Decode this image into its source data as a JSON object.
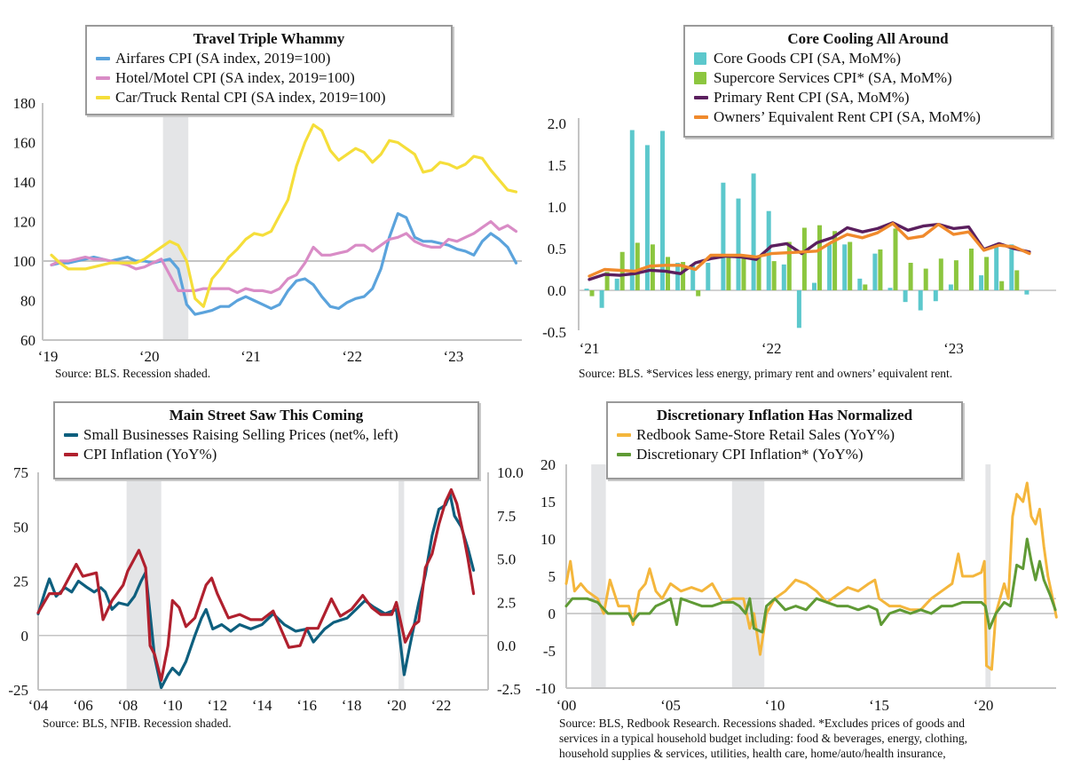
{
  "chart_data": [
    {
      "type": "line",
      "title": "Travel Triple Whammy",
      "start_month": "2019-01",
      "frequency": "monthly",
      "ylim": [
        60,
        180
      ],
      "yticks": [
        "60",
        "80",
        "100",
        "120",
        "140",
        "160",
        "180"
      ],
      "xticks": [
        "‘19",
        "‘20",
        "‘21",
        "‘22",
        "‘23"
      ],
      "reference_line": 100,
      "recession_shaded": [
        "2020-02",
        "2020-04"
      ],
      "legend": "top-center",
      "source": "Source: BLS. Recession shaded.",
      "colors": {
        "airfares": "#5ba3dc",
        "hotel": "#d98cc6",
        "car": "#f5de3a"
      },
      "series": [
        {
          "name": "Airfares CPI (SA index, 2019=100)",
          "key": "airfares",
          "values": [
            98,
            99,
            99,
            100,
            101,
            102,
            101,
            100,
            101,
            102,
            100,
            100,
            99,
            100,
            101,
            96,
            78,
            73,
            74,
            75,
            77,
            77,
            80,
            82,
            80,
            78,
            76,
            78,
            85,
            90,
            91,
            88,
            82,
            77,
            76,
            79,
            81,
            82,
            86,
            96,
            112,
            124,
            122,
            112,
            110,
            110,
            109,
            108,
            106,
            105,
            103,
            110,
            114,
            111,
            107,
            99
          ]
        },
        {
          "name": "Hotel/Motel CPI (SA index, 2019=100)",
          "key": "hotel",
          "values": [
            98,
            100,
            100,
            101,
            102,
            101,
            101,
            100,
            99,
            98,
            96,
            97,
            99,
            101,
            93,
            85,
            85,
            85,
            86,
            86,
            86,
            86,
            84,
            86,
            85,
            85,
            84,
            86,
            91,
            93,
            99,
            107,
            103,
            103,
            104,
            105,
            108,
            108,
            105,
            108,
            111,
            112,
            114,
            110,
            108,
            107,
            107,
            111,
            110,
            112,
            114,
            117,
            120,
            116,
            118,
            115
          ]
        },
        {
          "name": "Car/Truck Rental CPI (SA index, 2019=100)",
          "key": "car",
          "values": [
            103,
            99,
            96,
            96,
            96,
            97,
            98,
            99,
            99,
            99,
            99,
            101,
            104,
            107,
            110,
            108,
            100,
            81,
            77,
            91,
            96,
            102,
            106,
            111,
            114,
            113,
            115,
            123,
            131,
            148,
            160,
            169,
            166,
            156,
            151,
            154,
            157,
            155,
            150,
            154,
            161,
            160,
            157,
            154,
            145,
            146,
            150,
            149,
            147,
            149,
            153,
            152,
            146,
            141,
            136,
            135
          ]
        }
      ]
    },
    {
      "type": "bar+line",
      "title": "Core Cooling All Around",
      "start_month": "2021-01",
      "frequency": "monthly",
      "ylim": [
        -0.5,
        2.0
      ],
      "yticks": [
        "-0.5",
        "0.0",
        "0.5",
        "1.0",
        "1.5",
        "2.0"
      ],
      "xticks": [
        "‘21",
        "‘22",
        "‘23"
      ],
      "legend": "top-right",
      "source": "Source: BLS. *Services less energy, primary rent and owners’ equivalent rent.",
      "colors": {
        "goods": "#5cc8cc",
        "supercore": "#8cc63f",
        "rent": "#5b1f5e",
        "oer": "#f08a2c"
      },
      "series": [
        {
          "name": "Core Goods CPI (SA, MoM%)",
          "key": "goods",
          "kind": "bar",
          "values": [
            0.02,
            -0.21,
            0.14,
            1.92,
            1.74,
            1.91,
            0.33,
            0.3,
            0.33,
            1.29,
            1.1,
            1.4,
            0.95,
            0.31,
            -0.45,
            0.09,
            0.55,
            0.55,
            0.14,
            0.44,
            0.03,
            -0.14,
            -0.24,
            -0.13,
            0.07,
            0.0,
            0.18,
            0.55,
            0.55,
            -0.05
          ]
        },
        {
          "name": "Supercore Services CPI* (SA, MoM%)",
          "key": "supercore",
          "kind": "bar",
          "values": [
            -0.07,
            0.22,
            0.46,
            0.57,
            0.55,
            0.4,
            0.34,
            -0.07,
            0.0,
            0.42,
            0.4,
            0.4,
            0.35,
            0.58,
            0.75,
            0.78,
            0.71,
            0.58,
            0.07,
            0.49,
            0.74,
            0.33,
            0.26,
            0.38,
            0.36,
            0.5,
            0.4,
            0.11,
            0.24,
            0.0
          ]
        },
        {
          "name": "Primary Rent CPI (SA, MoM%)",
          "key": "rent",
          "kind": "line",
          "values": [
            0.13,
            0.19,
            0.18,
            0.2,
            0.24,
            0.23,
            0.2,
            0.33,
            0.38,
            0.41,
            0.4,
            0.37,
            0.53,
            0.56,
            0.44,
            0.57,
            0.63,
            0.75,
            0.7,
            0.74,
            0.81,
            0.72,
            0.77,
            0.79,
            0.74,
            0.76,
            0.49,
            0.56,
            0.5,
            0.46
          ]
        },
        {
          "name": "Owners’ Equivalent Rent CPI (SA, MoM%)",
          "key": "oer",
          "kind": "line",
          "values": [
            0.17,
            0.25,
            0.24,
            0.23,
            0.29,
            0.3,
            0.3,
            0.25,
            0.42,
            0.42,
            0.42,
            0.4,
            0.44,
            0.45,
            0.46,
            0.47,
            0.58,
            0.67,
            0.63,
            0.69,
            0.8,
            0.62,
            0.65,
            0.79,
            0.67,
            0.7,
            0.48,
            0.54,
            0.52,
            0.44
          ]
        }
      ]
    },
    {
      "type": "line",
      "title": "Main Street Saw This Coming",
      "ylim_left": [
        -25,
        75
      ],
      "ylim_right": [
        -2.5,
        10.0
      ],
      "yticks_left": [
        "-25",
        "0",
        "25",
        "50",
        "75"
      ],
      "yticks_right": [
        "-2.5",
        "0.0",
        "2.5",
        "5.0",
        "7.5",
        "10.0"
      ],
      "xticks": [
        "‘04",
        "‘06",
        "‘08",
        "‘10",
        "‘12",
        "‘14",
        "‘16",
        "‘18",
        "‘20",
        "‘22"
      ],
      "reference_line": 0,
      "recession_shaded": [
        [
          2007.95,
          2009.5
        ],
        [
          2020.1,
          2020.35
        ]
      ],
      "legend": "top-center",
      "source": "Source: BLS, NFIB. Recession shaded.",
      "colors": {
        "nfib": "#0e5f7e",
        "cpi": "#b0202e"
      },
      "series": [
        {
          "name": "Small Businesses Raising Selling Prices (net%, left)",
          "key": "nfib",
          "axis": "left",
          "x": [
            2004.0,
            2004.3,
            2004.5,
            2004.8,
            2005.2,
            2005.5,
            2005.8,
            2006.2,
            2006.5,
            2006.8,
            2007.0,
            2007.3,
            2007.6,
            2008.0,
            2008.3,
            2008.6,
            2008.8,
            2009.0,
            2009.2,
            2009.5,
            2009.8,
            2010.0,
            2010.3,
            2010.6,
            2011.0,
            2011.3,
            2011.5,
            2011.8,
            2012.2,
            2012.6,
            2013.0,
            2013.5,
            2014.0,
            2014.5,
            2015.0,
            2015.5,
            2016.0,
            2016.3,
            2016.8,
            2017.2,
            2017.8,
            2018.2,
            2018.6,
            2019.0,
            2019.5,
            2020.0,
            2020.2,
            2020.35,
            2020.6,
            2021.0,
            2021.3,
            2021.6,
            2021.9,
            2022.2,
            2022.4,
            2022.6,
            2022.9,
            2023.2,
            2023.45
          ],
          "values": [
            10,
            20,
            26,
            18,
            22,
            20,
            25,
            22,
            20,
            22,
            20,
            12,
            15,
            14,
            18,
            25,
            29,
            10,
            -10,
            -24,
            -18,
            -15,
            -18,
            -12,
            0,
            8,
            12,
            3,
            5,
            2,
            5,
            3,
            5,
            10,
            5,
            2,
            3,
            -3,
            3,
            6,
            8,
            12,
            16,
            13,
            10,
            12,
            -5,
            -18,
            -5,
            15,
            28,
            46,
            58,
            60,
            65,
            55,
            50,
            40,
            30
          ]
        },
        {
          "name": "CPI Inflation (YoY%)",
          "key": "cpi",
          "axis": "right",
          "x": [
            2004.0,
            2004.5,
            2005.0,
            2005.7,
            2006.0,
            2006.6,
            2006.9,
            2007.3,
            2007.8,
            2008.0,
            2008.5,
            2008.8,
            2009.0,
            2009.2,
            2009.5,
            2009.8,
            2010.0,
            2010.3,
            2010.6,
            2011.0,
            2011.5,
            2011.75,
            2012.0,
            2012.5,
            2013.0,
            2013.5,
            2014.0,
            2014.5,
            2014.9,
            2015.2,
            2015.7,
            2016.0,
            2016.5,
            2017.1,
            2017.5,
            2018.0,
            2018.5,
            2018.9,
            2019.3,
            2019.8,
            2020.0,
            2020.4,
            2020.8,
            2021.0,
            2021.3,
            2021.6,
            2021.9,
            2022.2,
            2022.45,
            2022.7,
            2023.0,
            2023.2,
            2023.45
          ],
          "values": [
            1.9,
            3.0,
            3.0,
            4.7,
            4.0,
            4.2,
            1.5,
            2.6,
            3.5,
            4.3,
            5.5,
            4.5,
            0.0,
            -0.5,
            -2.0,
            0.0,
            2.6,
            2.2,
            1.1,
            1.6,
            3.5,
            3.9,
            3.0,
            1.6,
            1.8,
            1.5,
            1.5,
            2.0,
            0.8,
            -0.1,
            0.0,
            1.0,
            1.0,
            2.7,
            1.7,
            2.1,
            2.9,
            2.2,
            1.8,
            1.8,
            2.5,
            0.2,
            1.2,
            1.4,
            4.5,
            5.3,
            7.0,
            8.3,
            9.0,
            8.2,
            6.4,
            5.0,
            3.0
          ]
        }
      ]
    },
    {
      "type": "line",
      "title": "Discretionary Inflation Has Normalized",
      "ylim": [
        -10,
        20
      ],
      "yticks": [
        "-10",
        "-5",
        "0",
        "5",
        "10",
        "15",
        "20"
      ],
      "xticks": [
        "‘00",
        "‘05",
        "‘10",
        "‘15",
        "‘20"
      ],
      "reference_lines": [
        0,
        2
      ],
      "recession_shaded": [
        [
          2001.2,
          2001.9
        ],
        [
          2007.95,
          2009.5
        ],
        [
          2020.1,
          2020.35
        ]
      ],
      "legend": "top-center",
      "source_lines": [
        "Source: BLS, Redbook Research. Recessions shaded. *Excludes prices of goods and",
        "services in a typical household budget including: food & beverages, energy, clothing,",
        "household supplies & services, utilities, health care, home/auto/health insurance,"
      ],
      "colors": {
        "redbook": "#f4b63c",
        "disc": "#5f9a35"
      },
      "series": [
        {
          "name": "Redbook Same-Store Retail Sales (YoY%)",
          "key": "redbook",
          "x": [
            2000.0,
            2000.2,
            2000.4,
            2000.7,
            2001.0,
            2001.5,
            2001.8,
            2002.1,
            2002.5,
            2003.0,
            2003.2,
            2003.5,
            2003.8,
            2004.0,
            2004.3,
            2004.6,
            2005.0,
            2005.5,
            2006.0,
            2006.5,
            2007.0,
            2007.5,
            2008.0,
            2008.5,
            2008.8,
            2009.0,
            2009.3,
            2009.6,
            2010.0,
            2010.5,
            2011.0,
            2011.5,
            2012.0,
            2012.5,
            2013.0,
            2013.5,
            2014.0,
            2014.5,
            2014.8,
            2015.0,
            2015.5,
            2016.0,
            2016.5,
            2017.0,
            2017.5,
            2018.0,
            2018.5,
            2018.8,
            2019.0,
            2019.5,
            2019.9,
            2020.05,
            2020.15,
            2020.4,
            2020.6,
            2021.0,
            2021.2,
            2021.4,
            2021.6,
            2021.9,
            2022.1,
            2022.3,
            2022.5,
            2022.7,
            2022.9,
            2023.1,
            2023.4,
            2023.5
          ],
          "values": [
            4,
            7,
            3,
            4,
            3,
            2,
            0,
            4.5,
            1,
            1,
            -1.5,
            3,
            4,
            6,
            3,
            2,
            4,
            3,
            3.5,
            3,
            4,
            1.5,
            2,
            2,
            -2,
            0,
            -5.5,
            0,
            2,
            3,
            4.5,
            4,
            3,
            1.5,
            2.5,
            3.5,
            3,
            4,
            4.5,
            2,
            1,
            1,
            0.5,
            0.5,
            2,
            3,
            4,
            8,
            5,
            5,
            5.5,
            7,
            -7,
            -7.5,
            0,
            4,
            2,
            13,
            16,
            15,
            17.5,
            13,
            12,
            14,
            9,
            5,
            1,
            -0.5
          ]
        },
        {
          "name": "Discretionary CPI Inflation* (YoY%)",
          "key": "disc",
          "x": [
            2000.0,
            2000.3,
            2000.6,
            2001.0,
            2001.5,
            2002.0,
            2002.5,
            2003.0,
            2003.2,
            2003.5,
            2004.0,
            2004.3,
            2004.7,
            2005.0,
            2005.3,
            2005.5,
            2006.0,
            2006.5,
            2007.0,
            2007.5,
            2008.0,
            2008.3,
            2008.6,
            2008.8,
            2009.0,
            2009.4,
            2009.6,
            2010.0,
            2010.5,
            2011.0,
            2011.5,
            2012.0,
            2012.5,
            2013.0,
            2013.5,
            2014.0,
            2014.5,
            2014.9,
            2015.1,
            2015.5,
            2016.0,
            2016.5,
            2017.0,
            2017.5,
            2018.0,
            2018.5,
            2019.0,
            2019.5,
            2019.9,
            2020.1,
            2020.3,
            2020.6,
            2021.0,
            2021.3,
            2021.6,
            2021.9,
            2022.1,
            2022.3,
            2022.5,
            2022.7,
            2022.9,
            2023.2,
            2023.45
          ],
          "values": [
            1,
            2,
            2,
            2,
            1.5,
            0,
            0,
            0,
            -1,
            0,
            0,
            1,
            1.5,
            2,
            -1.5,
            2,
            1.5,
            1,
            1,
            1.5,
            1.5,
            1,
            0,
            2,
            -2,
            -2.5,
            1,
            2,
            0.5,
            1,
            0.5,
            2,
            1.5,
            1,
            1,
            0.5,
            1,
            0.5,
            -1.5,
            0,
            0.5,
            0,
            0.5,
            0,
            1,
            1,
            1.5,
            1.5,
            1.5,
            1,
            -2,
            0,
            1.5,
            1,
            6.5,
            6,
            10,
            7,
            4.5,
            7,
            4.5,
            2.5,
            0.5
          ]
        }
      ]
    }
  ]
}
